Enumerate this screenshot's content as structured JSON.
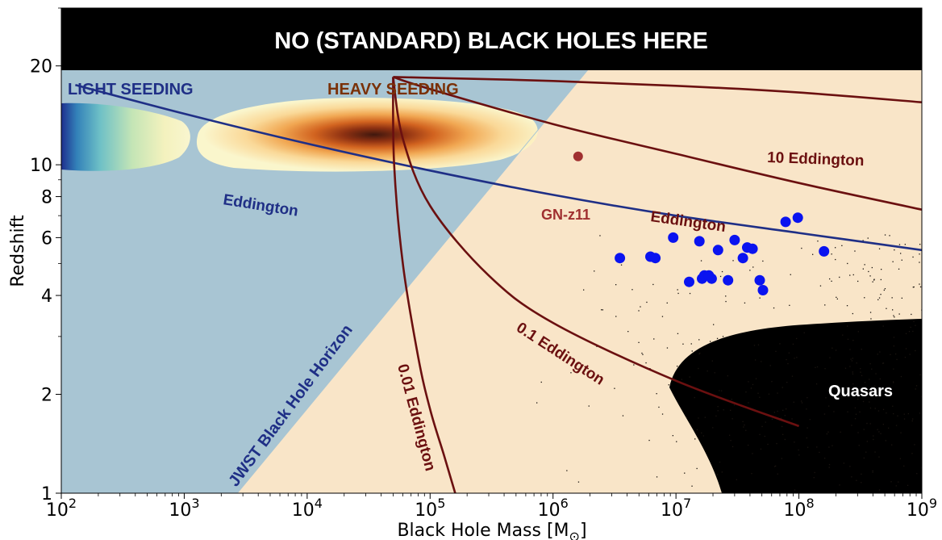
{
  "chart_data": {
    "type": "scatter",
    "xlabel": "Black Hole Mass [M",
    "xlabel_sub": "⊙",
    "xlabel_end": "]",
    "ylabel": "Redshift",
    "x_scale": "log",
    "y_scale": "log",
    "xlim": [
      100,
      1000000000
    ],
    "ylim": [
      1,
      30
    ],
    "x_ticks": [
      {
        "value": 100,
        "base": "10",
        "exp": "2"
      },
      {
        "value": 1000,
        "base": "10",
        "exp": "3"
      },
      {
        "value": 10000,
        "base": "10",
        "exp": "4"
      },
      {
        "value": 100000,
        "base": "10",
        "exp": "5"
      },
      {
        "value": 1000000,
        "base": "10",
        "exp": "6"
      },
      {
        "value": 10000000,
        "base": "10",
        "exp": "7"
      },
      {
        "value": 100000000,
        "base": "10",
        "exp": "8"
      },
      {
        "value": 1000000000,
        "base": "10",
        "exp": "9"
      }
    ],
    "y_ticks": [
      {
        "value": 1,
        "label": "1"
      },
      {
        "value": 2,
        "label": "2"
      },
      {
        "value": 4,
        "label": "4"
      },
      {
        "value": 6,
        "label": "6"
      },
      {
        "value": 8,
        "label": "8"
      },
      {
        "value": 10,
        "label": "10"
      },
      {
        "value": 20,
        "label": "20"
      }
    ],
    "banner": "NO (STANDARD) BLACK HOLES HERE",
    "region_labels": {
      "light_seeding": "LIGHT SEEDING",
      "heavy_seeding": "HEAVY SEEDING",
      "horizon": "JWST Black Hole Horizon",
      "quasars": "Quasars"
    },
    "horizon_line": {
      "x": [
        2700,
        5000000
      ],
      "y": [
        1,
        30
      ]
    },
    "tracks": [
      {
        "name": "Eddington",
        "group": "light",
        "color": "#1f2f86",
        "x": [
          130,
          1000,
          10000,
          100000,
          1000000,
          10000000,
          100000000,
          1000000000
        ],
        "y": [
          17.5,
          14.3,
          11.6,
          9.6,
          8.1,
          7.0,
          6.2,
          5.5
        ]
      },
      {
        "name": "10 Eddington",
        "group": "heavy",
        "color": "#6b1010",
        "x": [
          50000,
          100000,
          1000000,
          10000000,
          100000000,
          1000000000
        ],
        "y": [
          18.5,
          18.4,
          18.0,
          17.4,
          16.6,
          15.5
        ]
      },
      {
        "name": "Eddington",
        "group": "heavy",
        "color": "#6b1010",
        "x": [
          50000,
          100000,
          1000000,
          10000000,
          100000000,
          1000000000
        ],
        "y": [
          18.5,
          17.0,
          13.3,
          10.8,
          8.8,
          7.3
        ]
      },
      {
        "name": "0.1 Eddington",
        "group": "heavy",
        "color": "#6b1010",
        "x": [
          50000,
          60000,
          100000,
          300000,
          1000000,
          10000000,
          100000000
        ],
        "y": [
          18.5,
          12.0,
          7.5,
          4.6,
          3.3,
          2.2,
          1.6
        ]
      },
      {
        "name": "0.01 Eddington",
        "group": "heavy",
        "color": "#6b1010",
        "x": [
          50000,
          51000,
          60000,
          80000,
          100000,
          130000,
          160000
        ],
        "y": [
          18.5,
          10.0,
          5.0,
          2.6,
          1.8,
          1.3,
          1.0
        ]
      }
    ],
    "gn_z11": {
      "label": "GN-z11",
      "x": 1600000,
      "y": 10.6
    },
    "jwst_points": {
      "color": "#0a13f0",
      "x": [
        3500000,
        6200000,
        6800000,
        9500000,
        12800000,
        15500000,
        16300000,
        17000000,
        18500000,
        19500000,
        22000000,
        26500000,
        30000000,
        35000000,
        38000000,
        42000000,
        48000000,
        51000000,
        78000000,
        98000000,
        160000000
      ],
      "y": [
        5.2,
        5.25,
        5.2,
        6.0,
        4.4,
        5.85,
        4.5,
        4.6,
        4.6,
        4.5,
        5.5,
        4.45,
        5.9,
        5.2,
        5.6,
        5.55,
        4.45,
        4.15,
        6.7,
        6.9,
        5.45
      ]
    }
  }
}
